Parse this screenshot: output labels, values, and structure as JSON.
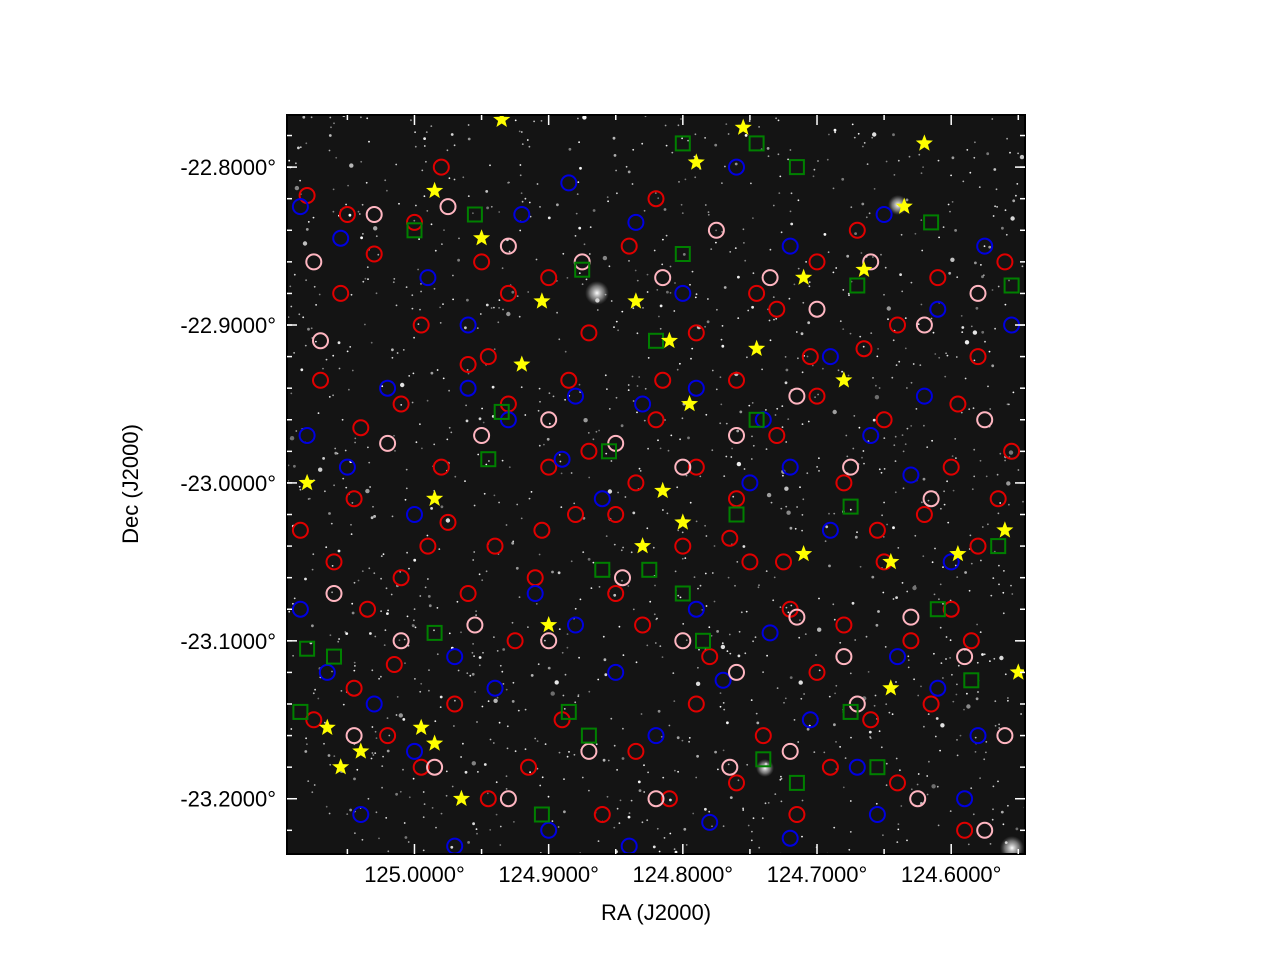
{
  "chart_data": {
    "type": "scatter",
    "title": "",
    "xlabel": "RA (J2000)",
    "ylabel": "Dec (J2000)",
    "xlim": [
      125.095,
      124.545
    ],
    "ylim": [
      -23.235,
      -22.767
    ],
    "x_ticks": [
      {
        "value": 125.0,
        "label": "125.0000°"
      },
      {
        "value": 124.9,
        "label": "124.9000°"
      },
      {
        "value": 124.8,
        "label": "124.8000°"
      },
      {
        "value": 124.7,
        "label": "124.7000°"
      },
      {
        "value": 124.6,
        "label": "124.6000°"
      }
    ],
    "y_ticks": [
      {
        "value": -22.8,
        "label": "-22.8000°"
      },
      {
        "value": -22.9,
        "label": "-22.9000°"
      },
      {
        "value": -23.0,
        "label": "-23.0000°"
      },
      {
        "value": -23.1,
        "label": "-23.1000°"
      },
      {
        "value": -23.2,
        "label": "-23.2000°"
      }
    ],
    "background": "grayscale star field image",
    "legend": "none",
    "grid": false,
    "series": [
      {
        "marker": "circle",
        "color": "#e00000",
        "points": [
          [
            125.08,
            -22.818
          ],
          [
            125.05,
            -22.83
          ],
          [
            125.03,
            -22.855
          ],
          [
            125.0,
            -22.835
          ],
          [
            124.98,
            -22.8
          ],
          [
            124.95,
            -22.86
          ],
          [
            124.93,
            -22.88
          ],
          [
            124.9,
            -22.87
          ],
          [
            124.87,
            -22.905
          ],
          [
            124.84,
            -22.85
          ],
          [
            124.82,
            -22.82
          ],
          [
            124.79,
            -22.905
          ],
          [
            124.76,
            -22.935
          ],
          [
            124.73,
            -22.89
          ],
          [
            124.7,
            -22.86
          ],
          [
            124.67,
            -22.84
          ],
          [
            124.64,
            -22.9
          ],
          [
            124.61,
            -22.87
          ],
          [
            124.58,
            -22.92
          ],
          [
            124.56,
            -22.86
          ],
          [
            125.07,
            -22.935
          ],
          [
            125.04,
            -22.965
          ],
          [
            125.01,
            -22.95
          ],
          [
            124.98,
            -22.99
          ],
          [
            124.96,
            -22.925
          ],
          [
            124.93,
            -22.95
          ],
          [
            124.9,
            -22.99
          ],
          [
            124.87,
            -22.98
          ],
          [
            124.85,
            -23.02
          ],
          [
            124.82,
            -22.96
          ],
          [
            124.79,
            -22.99
          ],
          [
            124.76,
            -23.01
          ],
          [
            124.73,
            -22.97
          ],
          [
            124.7,
            -22.945
          ],
          [
            124.68,
            -23.0
          ],
          [
            124.65,
            -22.96
          ],
          [
            124.62,
            -23.02
          ],
          [
            124.6,
            -22.99
          ],
          [
            124.58,
            -23.04
          ],
          [
            124.555,
            -22.98
          ],
          [
            125.085,
            -23.03
          ],
          [
            125.06,
            -23.05
          ],
          [
            125.035,
            -23.08
          ],
          [
            125.01,
            -23.06
          ],
          [
            124.99,
            -23.04
          ],
          [
            124.96,
            -23.07
          ],
          [
            124.94,
            -23.04
          ],
          [
            124.91,
            -23.06
          ],
          [
            124.88,
            -23.02
          ],
          [
            124.85,
            -23.07
          ],
          [
            124.83,
            -23.09
          ],
          [
            124.8,
            -23.04
          ],
          [
            124.78,
            -23.11
          ],
          [
            124.75,
            -23.05
          ],
          [
            124.72,
            -23.08
          ],
          [
            124.7,
            -23.12
          ],
          [
            124.68,
            -23.09
          ],
          [
            124.65,
            -23.05
          ],
          [
            124.63,
            -23.1
          ],
          [
            124.6,
            -23.08
          ],
          [
            125.075,
            -23.15
          ],
          [
            125.045,
            -23.13
          ],
          [
            125.02,
            -23.16
          ],
          [
            124.995,
            -23.18
          ],
          [
            124.97,
            -23.14
          ],
          [
            124.945,
            -23.2
          ],
          [
            124.915,
            -23.18
          ],
          [
            124.89,
            -23.15
          ],
          [
            124.86,
            -23.21
          ],
          [
            124.835,
            -23.17
          ],
          [
            124.81,
            -23.2
          ],
          [
            124.79,
            -23.14
          ],
          [
            124.76,
            -23.19
          ],
          [
            124.74,
            -23.16
          ],
          [
            124.715,
            -23.21
          ],
          [
            124.69,
            -23.18
          ],
          [
            124.66,
            -23.15
          ],
          [
            124.64,
            -23.19
          ],
          [
            124.615,
            -23.14
          ],
          [
            124.59,
            -23.22
          ],
          [
            125.055,
            -22.88
          ],
          [
            124.995,
            -22.9
          ],
          [
            124.945,
            -22.92
          ],
          [
            124.885,
            -22.935
          ],
          [
            124.815,
            -22.935
          ],
          [
            124.745,
            -22.88
          ],
          [
            124.705,
            -22.92
          ],
          [
            124.665,
            -22.915
          ],
          [
            124.595,
            -22.95
          ],
          [
            124.565,
            -23.01
          ],
          [
            125.045,
            -23.01
          ],
          [
            124.975,
            -23.025
          ],
          [
            124.905,
            -23.03
          ],
          [
            124.835,
            -23.0
          ],
          [
            124.765,
            -23.035
          ],
          [
            124.725,
            -23.05
          ],
          [
            124.655,
            -23.03
          ],
          [
            124.585,
            -23.1
          ],
          [
            125.015,
            -23.115
          ],
          [
            124.925,
            -23.1
          ]
        ]
      },
      {
        "marker": "circle",
        "color": "#0000e0",
        "points": [
          [
            125.085,
            -22.825
          ],
          [
            125.055,
            -22.845
          ],
          [
            124.99,
            -22.87
          ],
          [
            124.96,
            -22.9
          ],
          [
            124.92,
            -22.83
          ],
          [
            124.885,
            -22.81
          ],
          [
            124.835,
            -22.835
          ],
          [
            124.8,
            -22.88
          ],
          [
            124.76,
            -22.8
          ],
          [
            124.72,
            -22.85
          ],
          [
            124.69,
            -22.92
          ],
          [
            124.65,
            -22.83
          ],
          [
            124.61,
            -22.89
          ],
          [
            124.575,
            -22.85
          ],
          [
            124.555,
            -22.9
          ],
          [
            125.08,
            -22.97
          ],
          [
            125.05,
            -22.99
          ],
          [
            125.0,
            -23.02
          ],
          [
            124.96,
            -22.94
          ],
          [
            124.93,
            -22.96
          ],
          [
            124.89,
            -22.985
          ],
          [
            124.86,
            -23.01
          ],
          [
            124.83,
            -22.95
          ],
          [
            124.79,
            -22.94
          ],
          [
            124.75,
            -23.0
          ],
          [
            124.72,
            -22.99
          ],
          [
            124.69,
            -23.03
          ],
          [
            124.66,
            -22.97
          ],
          [
            124.63,
            -22.995
          ],
          [
            124.6,
            -23.05
          ],
          [
            125.085,
            -23.08
          ],
          [
            125.065,
            -23.12
          ],
          [
            125.03,
            -23.14
          ],
          [
            125.0,
            -23.17
          ],
          [
            124.97,
            -23.11
          ],
          [
            124.94,
            -23.13
          ],
          [
            124.91,
            -23.07
          ],
          [
            124.88,
            -23.09
          ],
          [
            124.85,
            -23.12
          ],
          [
            124.82,
            -23.16
          ],
          [
            124.79,
            -23.08
          ],
          [
            124.77,
            -23.125
          ],
          [
            124.735,
            -23.095
          ],
          [
            124.705,
            -23.15
          ],
          [
            124.67,
            -23.18
          ],
          [
            124.64,
            -23.11
          ],
          [
            124.61,
            -23.13
          ],
          [
            124.58,
            -23.16
          ],
          [
            125.04,
            -23.21
          ],
          [
            124.97,
            -23.23
          ],
          [
            124.9,
            -23.22
          ],
          [
            124.84,
            -23.23
          ],
          [
            124.78,
            -23.215
          ],
          [
            124.72,
            -23.225
          ],
          [
            124.655,
            -23.21
          ],
          [
            124.59,
            -23.2
          ],
          [
            125.02,
            -22.94
          ],
          [
            124.88,
            -22.945
          ],
          [
            124.74,
            -22.96
          ],
          [
            124.62,
            -22.945
          ]
        ]
      },
      {
        "marker": "circle",
        "color": "#ffb6c1",
        "points": [
          [
            125.075,
            -22.86
          ],
          [
            125.03,
            -22.83
          ],
          [
            124.975,
            -22.825
          ],
          [
            124.93,
            -22.85
          ],
          [
            124.875,
            -22.86
          ],
          [
            124.815,
            -22.87
          ],
          [
            124.775,
            -22.84
          ],
          [
            124.735,
            -22.87
          ],
          [
            124.7,
            -22.89
          ],
          [
            124.66,
            -22.86
          ],
          [
            124.62,
            -22.9
          ],
          [
            124.58,
            -22.88
          ],
          [
            125.07,
            -22.91
          ],
          [
            125.02,
            -22.975
          ],
          [
            124.95,
            -22.97
          ],
          [
            124.9,
            -22.96
          ],
          [
            124.85,
            -22.975
          ],
          [
            124.8,
            -22.99
          ],
          [
            124.76,
            -22.97
          ],
          [
            124.715,
            -22.945
          ],
          [
            124.675,
            -22.99
          ],
          [
            124.615,
            -23.01
          ],
          [
            124.575,
            -22.96
          ],
          [
            125.06,
            -23.07
          ],
          [
            125.01,
            -23.1
          ],
          [
            124.955,
            -23.09
          ],
          [
            124.9,
            -23.1
          ],
          [
            124.845,
            -23.06
          ],
          [
            124.8,
            -23.1
          ],
          [
            124.76,
            -23.12
          ],
          [
            124.715,
            -23.085
          ],
          [
            124.68,
            -23.11
          ],
          [
            124.63,
            -23.085
          ],
          [
            124.59,
            -23.11
          ],
          [
            124.56,
            -23.16
          ],
          [
            125.045,
            -23.16
          ],
          [
            124.985,
            -23.18
          ],
          [
            124.93,
            -23.2
          ],
          [
            124.87,
            -23.17
          ],
          [
            124.82,
            -23.2
          ],
          [
            124.765,
            -23.18
          ],
          [
            124.72,
            -23.17
          ],
          [
            124.67,
            -23.14
          ],
          [
            124.625,
            -23.2
          ],
          [
            124.575,
            -23.22
          ]
        ]
      },
      {
        "marker": "square",
        "color": "#008000",
        "points": [
          [
            124.955,
            -22.83
          ],
          [
            125.0,
            -22.84
          ],
          [
            124.875,
            -22.865
          ],
          [
            124.8,
            -22.855
          ],
          [
            124.715,
            -22.8
          ],
          [
            124.67,
            -22.875
          ],
          [
            124.615,
            -22.835
          ],
          [
            124.555,
            -22.875
          ],
          [
            124.82,
            -22.91
          ],
          [
            124.935,
            -22.955
          ],
          [
            124.745,
            -22.96
          ],
          [
            124.945,
            -22.985
          ],
          [
            124.855,
            -22.98
          ],
          [
            124.76,
            -23.02
          ],
          [
            124.675,
            -23.015
          ],
          [
            124.565,
            -23.04
          ],
          [
            124.86,
            -23.055
          ],
          [
            124.825,
            -23.055
          ],
          [
            124.8,
            -23.07
          ],
          [
            124.785,
            -23.1
          ],
          [
            124.61,
            -23.08
          ],
          [
            124.585,
            -23.125
          ],
          [
            125.08,
            -23.105
          ],
          [
            125.06,
            -23.11
          ],
          [
            124.985,
            -23.095
          ],
          [
            124.885,
            -23.145
          ],
          [
            124.87,
            -23.16
          ],
          [
            124.74,
            -23.175
          ],
          [
            124.715,
            -23.19
          ],
          [
            124.655,
            -23.18
          ],
          [
            124.675,
            -23.145
          ],
          [
            124.905,
            -23.21
          ],
          [
            125.085,
            -23.145
          ],
          [
            124.745,
            -22.785
          ],
          [
            124.8,
            -22.785
          ]
        ]
      },
      {
        "marker": "star",
        "color": "#ffff00",
        "points": [
          [
            124.985,
            -22.815
          ],
          [
            124.95,
            -22.845
          ],
          [
            124.905,
            -22.885
          ],
          [
            124.835,
            -22.885
          ],
          [
            124.81,
            -22.91
          ],
          [
            124.795,
            -22.95
          ],
          [
            124.745,
            -22.915
          ],
          [
            124.71,
            -22.87
          ],
          [
            124.665,
            -22.865
          ],
          [
            124.635,
            -22.825
          ],
          [
            124.68,
            -22.935
          ],
          [
            124.815,
            -23.005
          ],
          [
            124.8,
            -23.025
          ],
          [
            124.83,
            -23.04
          ],
          [
            124.71,
            -23.045
          ],
          [
            124.645,
            -23.05
          ],
          [
            124.595,
            -23.045
          ],
          [
            124.56,
            -23.03
          ],
          [
            125.08,
            -23.0
          ],
          [
            124.985,
            -23.01
          ],
          [
            124.92,
            -22.925
          ],
          [
            124.9,
            -23.09
          ],
          [
            124.645,
            -23.13
          ],
          [
            125.065,
            -23.155
          ],
          [
            125.04,
            -23.17
          ],
          [
            125.055,
            -23.18
          ],
          [
            124.995,
            -23.155
          ],
          [
            124.985,
            -23.165
          ],
          [
            124.965,
            -23.2
          ],
          [
            124.55,
            -23.12
          ],
          [
            124.62,
            -22.785
          ],
          [
            124.755,
            -22.775
          ],
          [
            124.935,
            -22.77
          ],
          [
            124.79,
            -22.797
          ]
        ]
      }
    ]
  }
}
